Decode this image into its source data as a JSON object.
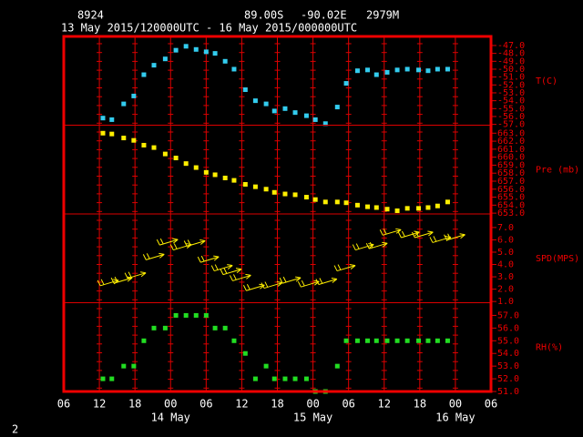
{
  "header": {
    "station": "8924",
    "lat": "89.00S",
    "lon": "-90.02E",
    "elev": "2979M",
    "period": "13 May 2015/120000UTC - 16 May 2015/000000UTC"
  },
  "page_number": "2",
  "chart_data": [
    {
      "type": "scatter",
      "label": "T(C)",
      "color": "#33ccee",
      "xlim": [
        0,
        72
      ],
      "ylim": [
        -57.1,
        -45.85
      ],
      "yticks": [
        {
          "value": -47,
          "label": "-47.0"
        },
        {
          "value": -48,
          "label": "-48.0"
        },
        {
          "value": -49,
          "label": "-49.0"
        },
        {
          "value": -50,
          "label": "-50.0"
        },
        {
          "value": -51,
          "label": "-51.0"
        },
        {
          "value": -52,
          "label": "-52.0"
        },
        {
          "value": -53,
          "label": "-53.0"
        },
        {
          "value": -54,
          "label": "-54.0"
        },
        {
          "value": -55,
          "label": "-55.0"
        },
        {
          "value": -56,
          "label": "-56.0"
        },
        {
          "value": -57,
          "label": "-57.0"
        }
      ],
      "x": [
        6.6,
        8.1,
        10.1,
        11.8,
        13.5,
        15.2,
        17.1,
        18.9,
        20.6,
        22.3,
        24.0,
        25.5,
        27.2,
        28.7,
        30.6,
        32.3,
        34.1,
        35.5,
        37.3,
        39.0,
        40.9,
        42.4,
        44.1,
        46.1,
        47.6,
        49.5,
        51.2,
        52.7,
        54.5,
        56.2,
        57.9,
        59.8,
        61.4,
        63.0,
        64.7
      ],
      "values": [
        -56.2,
        -56.4,
        -54.4,
        -53.4,
        -50.7,
        -49.5,
        -48.7,
        -47.6,
        -47.1,
        -47.5,
        -47.8,
        -48.0,
        -49.0,
        -50.0,
        -52.6,
        -54.0,
        -54.4,
        -55.3,
        -55.0,
        -55.5,
        -55.9,
        -56.4,
        -56.9,
        -54.8,
        -51.8,
        -50.2,
        -50.1,
        -50.7,
        -50.4,
        -50.1,
        -50.0,
        -50.1,
        -50.2,
        -50.0,
        -50.0
      ]
    },
    {
      "type": "scatter",
      "label": "Pre (mb)",
      "color": "#ffee00",
      "xlim": [
        0,
        72
      ],
      "ylim": [
        652.9,
        664.0
      ],
      "yticks": [
        {
          "value": 663,
          "label": "663.0"
        },
        {
          "value": 662,
          "label": "662.0"
        },
        {
          "value": 661,
          "label": "661.0"
        },
        {
          "value": 660,
          "label": "660.0"
        },
        {
          "value": 659,
          "label": "659.0"
        },
        {
          "value": 658,
          "label": "658.0"
        },
        {
          "value": 657,
          "label": "657.0"
        },
        {
          "value": 656,
          "label": "656.0"
        },
        {
          "value": 655,
          "label": "655.0"
        },
        {
          "value": 654,
          "label": "654.0"
        },
        {
          "value": 653,
          "label": "653.0"
        }
      ],
      "x": [
        6.6,
        8.1,
        10.1,
        11.8,
        13.5,
        15.2,
        17.1,
        18.9,
        20.6,
        22.3,
        24.0,
        25.5,
        27.2,
        28.7,
        30.6,
        32.3,
        34.1,
        35.5,
        37.3,
        39.0,
        40.9,
        42.4,
        44.1,
        46.1,
        47.6,
        49.5,
        51.2,
        52.7,
        54.5,
        56.2,
        57.9,
        59.8,
        61.4,
        63.0,
        64.7
      ],
      "values": [
        663.0,
        662.9,
        662.4,
        662.1,
        661.5,
        661.2,
        660.4,
        659.9,
        659.2,
        658.7,
        658.1,
        657.8,
        657.4,
        657.1,
        656.6,
        656.3,
        656.0,
        655.6,
        655.4,
        655.3,
        655.0,
        654.7,
        654.4,
        654.4,
        654.3,
        654.0,
        653.8,
        653.7,
        653.5,
        653.3,
        653.6,
        653.6,
        653.7,
        653.9,
        654.4
      ]
    },
    {
      "type": "wind",
      "label": "SPD(MPS)",
      "color": "#ffee00",
      "xlim": [
        0,
        72
      ],
      "ylim": [
        0.9,
        8.1
      ],
      "yticks": [
        {
          "value": 7,
          "label": "7.0"
        },
        {
          "value": 6,
          "label": "6.0"
        },
        {
          "value": 5,
          "label": "5.0"
        },
        {
          "value": 4,
          "label": "4.0"
        },
        {
          "value": 3,
          "label": "3.0"
        },
        {
          "value": 2,
          "label": "2.0"
        },
        {
          "value": 1,
          "label": "1.0"
        }
      ],
      "x": [
        7.7,
        10.0,
        12.3,
        15.4,
        17.7,
        20.0,
        22.3,
        24.6,
        26.9,
        28.4,
        30.0,
        32.3,
        35.3,
        38.4,
        41.5,
        44.5,
        47.6,
        50.7,
        53.0,
        55.3,
        58.4,
        60.7,
        63.7,
        66.1
      ],
      "values": [
        2.5,
        2.7,
        3.1,
        4.6,
        5.8,
        5.4,
        5.7,
        4.4,
        3.7,
        3.4,
        2.9,
        2.1,
        2.3,
        2.7,
        2.4,
        2.6,
        3.7,
        5.4,
        5.5,
        6.6,
        6.4,
        6.4,
        6.0,
        6.2
      ]
    },
    {
      "type": "scatter",
      "label": "RH(%)",
      "color": "#22dd22",
      "xlim": [
        0,
        72
      ],
      "ylim": [
        51,
        58
      ],
      "yticks": [
        {
          "value": 57,
          "label": "57.0"
        },
        {
          "value": 56,
          "label": "56.0"
        },
        {
          "value": 55,
          "label": "55.0"
        },
        {
          "value": 54,
          "label": "54.0"
        },
        {
          "value": 53,
          "label": "53.0"
        },
        {
          "value": 52,
          "label": "52.0"
        },
        {
          "value": 51,
          "label": "51.0"
        }
      ],
      "x": [
        6.6,
        8.1,
        10.1,
        11.8,
        13.5,
        15.2,
        17.1,
        18.9,
        20.6,
        22.3,
        24.0,
        25.5,
        27.2,
        28.7,
        30.6,
        32.3,
        34.1,
        35.5,
        37.3,
        39.0,
        40.9,
        42.4,
        44.1,
        46.1,
        47.6,
        49.5,
        51.2,
        52.7,
        54.5,
        56.2,
        57.9,
        59.8,
        61.4,
        63.0,
        64.7
      ],
      "values": [
        52,
        52,
        53,
        53,
        55,
        56,
        56,
        57,
        57,
        57,
        57,
        56,
        56,
        55,
        54,
        52,
        53,
        52,
        52,
        52,
        52,
        51,
        51,
        53,
        55,
        55,
        55,
        55,
        55,
        55,
        55,
        55,
        55,
        55,
        55
      ],
      "xticks": [
        {
          "value": 0,
          "label": "06"
        },
        {
          "value": 6,
          "label": "12"
        },
        {
          "value": 12,
          "label": "18"
        },
        {
          "value": 18,
          "label": "00"
        },
        {
          "value": 24,
          "label": "06"
        },
        {
          "value": 30,
          "label": "12"
        },
        {
          "value": 36,
          "label": "18"
        },
        {
          "value": 42,
          "label": "00"
        },
        {
          "value": 48,
          "label": "06"
        },
        {
          "value": 54,
          "label": "12"
        },
        {
          "value": 60,
          "label": "18"
        },
        {
          "value": 66,
          "label": "00"
        },
        {
          "value": 72,
          "label": "06"
        }
      ],
      "xdates": [
        {
          "value": 18,
          "label": "14 May"
        },
        {
          "value": 42,
          "label": "15 May"
        },
        {
          "value": 66,
          "label": "16 May"
        }
      ]
    }
  ]
}
